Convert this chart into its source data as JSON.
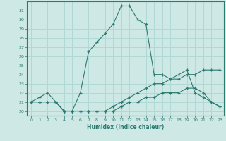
{
  "xlabel": "Humidex (Indice chaleur)",
  "ylabel": "",
  "bg_color": "#cde8e5",
  "grid_color": "#b0d8d4",
  "line_color": "#2d7a72",
  "xlim": [
    -0.5,
    23.5
  ],
  "ylim": [
    19.5,
    32
  ],
  "xticks": [
    0,
    1,
    2,
    3,
    4,
    5,
    6,
    7,
    8,
    9,
    10,
    11,
    12,
    13,
    14,
    15,
    16,
    17,
    18,
    19,
    20,
    21,
    22,
    23
  ],
  "yticks": [
    20,
    21,
    22,
    23,
    24,
    25,
    26,
    27,
    28,
    29,
    30,
    31
  ],
  "series": [
    {
      "x": [
        0,
        1,
        2,
        3,
        4,
        5,
        6,
        7,
        8,
        9,
        10,
        11,
        12,
        13,
        14,
        15,
        16,
        17,
        18,
        19,
        20,
        21,
        22,
        23
      ],
      "y": [
        21,
        21.5,
        22,
        21,
        20,
        20,
        22,
        26.5,
        27.5,
        28.5,
        29.5,
        31.5,
        31.5,
        30,
        29.5,
        24,
        24,
        23.5,
        24,
        24.5,
        22,
        21.5,
        21,
        20.5
      ]
    },
    {
      "x": [
        0,
        1,
        2,
        3,
        4,
        5,
        6,
        7,
        8,
        9,
        10,
        11,
        12,
        13,
        14,
        15,
        16,
        17,
        18,
        19,
        20,
        21,
        22,
        23
      ],
      "y": [
        21,
        21,
        21,
        21,
        20,
        20,
        20,
        20,
        20,
        20,
        20.5,
        21,
        21.5,
        22,
        22.5,
        23,
        23,
        23.5,
        23.5,
        24,
        24,
        24.5,
        24.5,
        24.5
      ]
    },
    {
      "x": [
        0,
        1,
        2,
        3,
        4,
        5,
        6,
        7,
        8,
        9,
        10,
        11,
        12,
        13,
        14,
        15,
        16,
        17,
        18,
        19,
        20,
        21,
        22,
        23
      ],
      "y": [
        21,
        21,
        21,
        21,
        20,
        20,
        20,
        20,
        20,
        20,
        20,
        20.5,
        21,
        21,
        21.5,
        21.5,
        22,
        22,
        22,
        22.5,
        22.5,
        22,
        21,
        20.5
      ]
    }
  ]
}
